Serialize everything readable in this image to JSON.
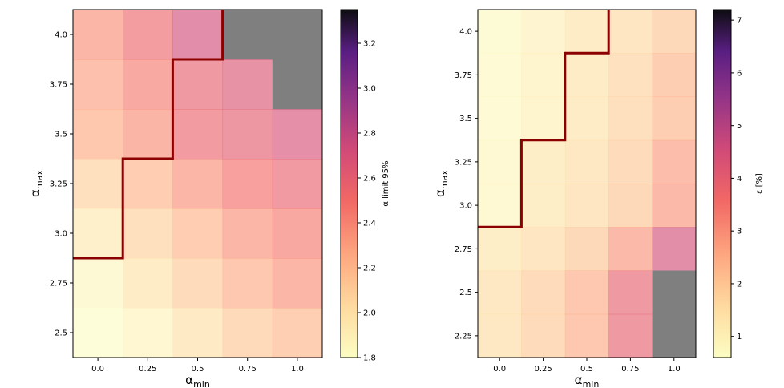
{
  "chart_data": [
    {
      "type": "heatmap",
      "title": "",
      "xlabel": "α_min",
      "ylabel": "α_max",
      "x": [
        0.0,
        0.25,
        0.5,
        0.75,
        1.0
      ],
      "y": [
        4.0,
        3.75,
        3.5,
        3.25,
        3.0,
        2.75,
        2.5
      ],
      "x_tick_labels": [
        "0.0",
        "0.25",
        "0.5",
        "0.75",
        "1.0"
      ],
      "y_tick_labels": [
        "4.0",
        "3.75",
        "3.5",
        "3.25",
        "3.0",
        "2.75",
        "2.5"
      ],
      "colormap": "magma_r",
      "colorbar": {
        "label": "α limit 95%",
        "range": [
          1.8,
          3.35
        ],
        "ticks": [
          1.8,
          2.0,
          2.2,
          2.4,
          2.6,
          2.8,
          3.0,
          3.2
        ],
        "tick_labels": [
          "1.8",
          "2.0",
          "2.2",
          "2.4",
          "2.6",
          "2.8",
          "3.0",
          "3.2"
        ]
      },
      "values": [
        [
          2.36,
          2.53,
          2.72,
          null,
          null
        ],
        [
          2.3,
          2.44,
          2.58,
          2.66,
          null
        ],
        [
          2.25,
          2.37,
          2.55,
          2.6,
          2.69
        ],
        [
          2.08,
          2.22,
          2.36,
          2.5,
          2.56
        ],
        [
          1.94,
          2.08,
          2.22,
          2.36,
          2.45
        ],
        [
          1.85,
          1.98,
          2.11,
          2.26,
          2.36
        ],
        [
          1.8,
          1.87,
          1.99,
          2.12,
          2.2
        ]
      ],
      "boundary": "excluded region above staircase line"
    },
    {
      "type": "heatmap",
      "title": "",
      "xlabel": "α_min",
      "ylabel": "α_max",
      "x": [
        0.0,
        0.25,
        0.5,
        0.75,
        1.0
      ],
      "y": [
        4.0,
        3.75,
        3.5,
        3.25,
        3.0,
        2.75,
        2.5,
        2.25
      ],
      "x_tick_labels": [
        "0.0",
        "0.25",
        "0.5",
        "0.75",
        "1.0"
      ],
      "y_tick_labels": [
        "4.0",
        "3.75",
        "3.5",
        "3.25",
        "3.0",
        "2.75",
        "2.5",
        "2.25"
      ],
      "colormap": "magma_r",
      "colorbar": {
        "label": "ε [%]",
        "range": [
          0.6,
          7.2
        ],
        "ticks": [
          1,
          2,
          3,
          4,
          5,
          6,
          7
        ],
        "tick_labels": [
          "1",
          "2",
          "3",
          "4",
          "5",
          "6",
          "7"
        ]
      },
      "values": [
        [
          0.7,
          1.0,
          1.35,
          1.6,
          2.0
        ],
        [
          0.75,
          1.05,
          1.35,
          1.75,
          2.35
        ],
        [
          0.75,
          1.05,
          1.35,
          1.8,
          2.35
        ],
        [
          0.85,
          1.3,
          1.55,
          1.95,
          2.8
        ],
        [
          0.85,
          1.3,
          1.6,
          2.0,
          2.9
        ],
        [
          1.3,
          1.6,
          2.0,
          2.9,
          4.5
        ],
        [
          1.55,
          1.95,
          2.5,
          3.9,
          null
        ],
        [
          1.55,
          1.95,
          2.5,
          3.9,
          null
        ]
      ],
      "boundary": "excluded region above staircase line"
    }
  ]
}
